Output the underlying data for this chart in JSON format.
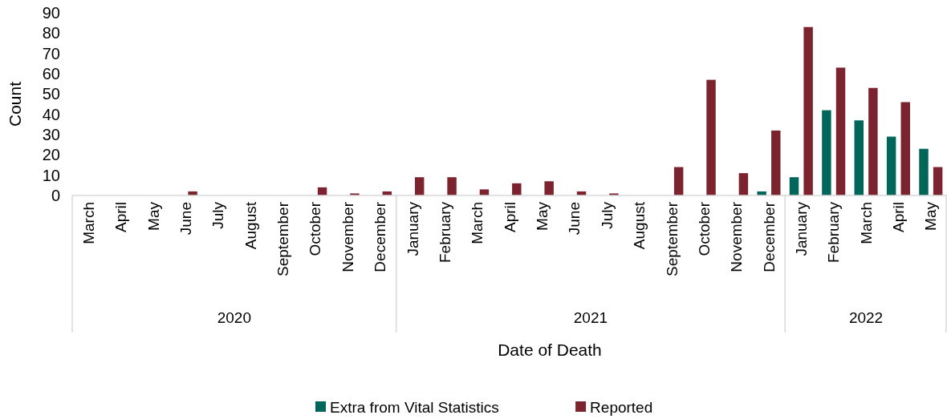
{
  "chart_data": {
    "type": "bar",
    "xlabel": "Date of Death",
    "ylabel": "Count",
    "categories": [
      "March",
      "April",
      "May",
      "June",
      "July",
      "August",
      "September",
      "October",
      "November",
      "December",
      "January",
      "February",
      "March",
      "April",
      "May",
      "June",
      "July",
      "August",
      "September",
      "October",
      "November",
      "December",
      "January",
      "February",
      "March",
      "April",
      "May"
    ],
    "annotations": [
      "2020",
      "2021",
      "2022"
    ],
    "series": [
      {
        "name": "Extra from Vital Statistics",
        "color": "#00665a",
        "values": [
          0,
          0,
          0,
          0,
          0,
          0,
          0,
          0,
          0,
          0,
          0,
          0,
          0,
          0,
          0,
          0,
          0,
          0,
          0,
          0,
          0,
          2,
          9,
          42,
          37,
          29,
          23
        ]
      },
      {
        "name": "Reported",
        "color": "#7b2430",
        "values": [
          0,
          0,
          0,
          2,
          0,
          0,
          0,
          4,
          1,
          2,
          9,
          9,
          3,
          6,
          7,
          2,
          1,
          0,
          14,
          57,
          11,
          32,
          83,
          63,
          53,
          46,
          14
        ]
      }
    ],
    "ylim": [
      0,
      90
    ],
    "yticks": [
      0,
      10,
      20,
      30,
      40,
      50,
      60,
      70,
      80,
      90
    ],
    "grid": false,
    "legend": "bottom"
  }
}
